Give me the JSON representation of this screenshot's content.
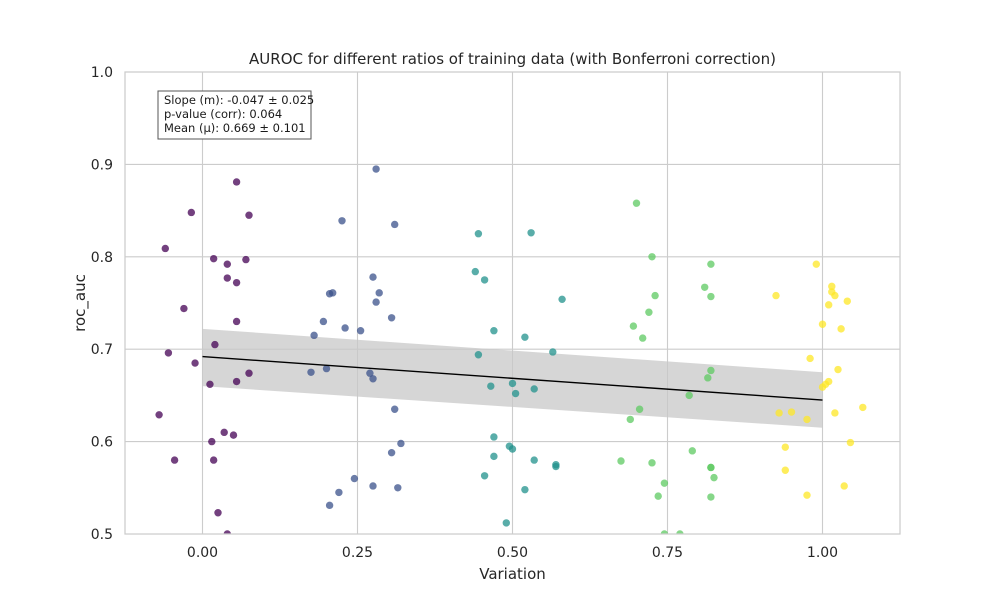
{
  "chart_data": {
    "type": "scatter",
    "title": "AUROC for different ratios of training data (with Bonferroni correction)",
    "xlabel": "Variation",
    "ylabel": "roc_auc",
    "xlim": [
      -0.125,
      1.125
    ],
    "ylim": [
      0.5,
      1.0
    ],
    "xticks": [
      0.0,
      0.25,
      0.5,
      0.75,
      1.0
    ],
    "xtick_labels": [
      "0.00",
      "0.25",
      "0.50",
      "0.75",
      "1.00"
    ],
    "yticks": [
      0.5,
      0.6,
      0.7,
      0.8,
      0.9,
      1.0
    ],
    "ytick_labels": [
      "0.5",
      "0.6",
      "0.7",
      "0.8",
      "0.9",
      "1.0"
    ],
    "grid": true,
    "annotation": [
      "Slope (m): -0.047 ± 0.025",
      "p-value (corr): 0.064",
      "Mean (μ): 0.669 ± 0.101"
    ],
    "regression": {
      "x": [
        0.0,
        1.0
      ],
      "y": [
        0.692,
        0.645
      ],
      "ci_lower": [
        0.66,
        0.615
      ],
      "ci_upper": [
        0.722,
        0.675
      ]
    },
    "series": [
      {
        "color": "#440154",
        "points": [
          [
            0.055,
            0.881
          ],
          [
            -0.018,
            0.848
          ],
          [
            0.075,
            0.845
          ],
          [
            -0.06,
            0.809
          ],
          [
            0.018,
            0.798
          ],
          [
            0.07,
            0.797
          ],
          [
            0.04,
            0.792
          ],
          [
            0.04,
            0.777
          ],
          [
            0.055,
            0.772
          ],
          [
            -0.03,
            0.744
          ],
          [
            0.055,
            0.73
          ],
          [
            0.02,
            0.705
          ],
          [
            -0.055,
            0.696
          ],
          [
            -0.012,
            0.685
          ],
          [
            0.075,
            0.674
          ],
          [
            0.055,
            0.665
          ],
          [
            0.012,
            0.662
          ],
          [
            -0.07,
            0.629
          ],
          [
            0.035,
            0.61
          ],
          [
            0.05,
            0.607
          ],
          [
            0.015,
            0.6
          ],
          [
            -0.045,
            0.58
          ],
          [
            0.018,
            0.58
          ],
          [
            0.025,
            0.523
          ],
          [
            0.04,
            0.5
          ]
        ]
      },
      {
        "color": "#3b528b",
        "points": [
          [
            0.28,
            0.895
          ],
          [
            0.225,
            0.839
          ],
          [
            0.31,
            0.835
          ],
          [
            0.275,
            0.778
          ],
          [
            0.21,
            0.761
          ],
          [
            0.205,
            0.76
          ],
          [
            0.285,
            0.761
          ],
          [
            0.28,
            0.751
          ],
          [
            0.305,
            0.734
          ],
          [
            0.195,
            0.73
          ],
          [
            0.23,
            0.723
          ],
          [
            0.255,
            0.72
          ],
          [
            0.18,
            0.715
          ],
          [
            0.2,
            0.679
          ],
          [
            0.175,
            0.675
          ],
          [
            0.27,
            0.674
          ],
          [
            0.275,
            0.668
          ],
          [
            0.31,
            0.635
          ],
          [
            0.32,
            0.598
          ],
          [
            0.305,
            0.588
          ],
          [
            0.245,
            0.56
          ],
          [
            0.275,
            0.552
          ],
          [
            0.315,
            0.55
          ],
          [
            0.22,
            0.545
          ],
          [
            0.205,
            0.531
          ]
        ]
      },
      {
        "color": "#21918c",
        "points": [
          [
            0.53,
            0.826
          ],
          [
            0.445,
            0.825
          ],
          [
            0.44,
            0.784
          ],
          [
            0.455,
            0.775
          ],
          [
            0.58,
            0.754
          ],
          [
            0.47,
            0.72
          ],
          [
            0.52,
            0.713
          ],
          [
            0.565,
            0.697
          ],
          [
            0.445,
            0.694
          ],
          [
            0.465,
            0.66
          ],
          [
            0.5,
            0.663
          ],
          [
            0.535,
            0.657
          ],
          [
            0.505,
            0.652
          ],
          [
            0.47,
            0.605
          ],
          [
            0.495,
            0.595
          ],
          [
            0.5,
            0.592
          ],
          [
            0.47,
            0.584
          ],
          [
            0.535,
            0.58
          ],
          [
            0.57,
            0.575
          ],
          [
            0.57,
            0.573
          ],
          [
            0.455,
            0.563
          ],
          [
            0.52,
            0.548
          ],
          [
            0.49,
            0.512
          ]
        ]
      },
      {
        "color": "#5ec962",
        "points": [
          [
            0.7,
            0.858
          ],
          [
            0.725,
            0.8
          ],
          [
            0.82,
            0.792
          ],
          [
            0.81,
            0.767
          ],
          [
            0.73,
            0.758
          ],
          [
            0.82,
            0.757
          ],
          [
            0.72,
            0.74
          ],
          [
            0.695,
            0.725
          ],
          [
            0.71,
            0.712
          ],
          [
            0.82,
            0.677
          ],
          [
            0.815,
            0.669
          ],
          [
            0.785,
            0.65
          ],
          [
            0.705,
            0.635
          ],
          [
            0.69,
            0.624
          ],
          [
            0.79,
            0.59
          ],
          [
            0.675,
            0.579
          ],
          [
            0.725,
            0.577
          ],
          [
            0.82,
            0.572
          ],
          [
            0.82,
            0.572
          ],
          [
            0.825,
            0.561
          ],
          [
            0.745,
            0.555
          ],
          [
            0.735,
            0.541
          ],
          [
            0.82,
            0.54
          ],
          [
            0.745,
            0.5
          ],
          [
            0.77,
            0.5
          ]
        ]
      },
      {
        "color": "#fde725",
        "points": [
          [
            0.99,
            0.792
          ],
          [
            1.015,
            0.768
          ],
          [
            1.015,
            0.762
          ],
          [
            1.02,
            0.758
          ],
          [
            0.925,
            0.758
          ],
          [
            1.04,
            0.752
          ],
          [
            1.01,
            0.748
          ],
          [
            1.0,
            0.727
          ],
          [
            1.03,
            0.722
          ],
          [
            0.98,
            0.69
          ],
          [
            1.025,
            0.678
          ],
          [
            1.01,
            0.665
          ],
          [
            1.005,
            0.662
          ],
          [
            1.0,
            0.659
          ],
          [
            1.065,
            0.637
          ],
          [
            0.95,
            0.632
          ],
          [
            0.93,
            0.631
          ],
          [
            1.02,
            0.631
          ],
          [
            0.975,
            0.624
          ],
          [
            1.045,
            0.599
          ],
          [
            0.94,
            0.594
          ],
          [
            0.94,
            0.569
          ],
          [
            1.035,
            0.552
          ],
          [
            0.975,
            0.542
          ]
        ]
      }
    ]
  }
}
